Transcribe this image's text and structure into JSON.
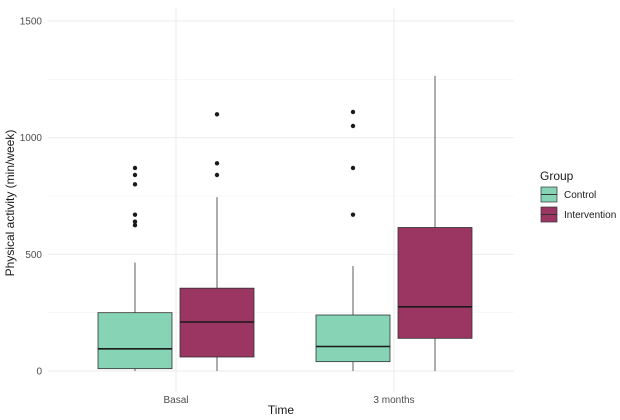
{
  "chart_data": {
    "type": "boxplot",
    "xlabel": "Time",
    "ylabel": "Physical activity (min/week)",
    "categories": [
      "Basal",
      "3 months"
    ],
    "ylim": [
      0,
      1500
    ],
    "yticks": [
      0,
      500,
      1000,
      1500
    ],
    "grid": true,
    "legend": {
      "title": "Group",
      "position": "right"
    },
    "series": [
      {
        "name": "Control",
        "color": "#86d3b5",
        "boxes": [
          {
            "min": 0,
            "q1": 10,
            "median": 95,
            "q3": 250,
            "max": 465,
            "outliers": [
              625,
              640,
              670,
              800,
              840,
              870
            ]
          },
          {
            "min": 0,
            "q1": 40,
            "median": 105,
            "q3": 240,
            "max": 450,
            "outliers": [
              670,
              870,
              1050,
              1110
            ]
          }
        ]
      },
      {
        "name": "Intervention",
        "color": "#9b3561",
        "boxes": [
          {
            "min": 0,
            "q1": 60,
            "median": 210,
            "q3": 355,
            "max": 745,
            "outliers": [
              840,
              890,
              1100
            ]
          },
          {
            "min": 0,
            "q1": 140,
            "median": 275,
            "q3": 615,
            "max": 1265,
            "outliers": []
          }
        ]
      }
    ]
  }
}
